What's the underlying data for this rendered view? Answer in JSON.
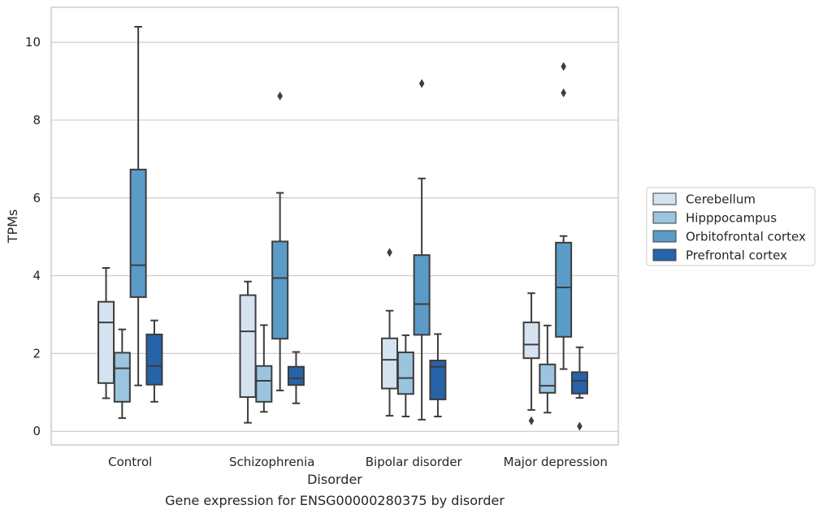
{
  "caption": "Gene expression for ENSG00000280375 by disorder",
  "chart_data": {
    "type": "box",
    "title": "",
    "xlabel": "Disorder",
    "ylabel": "TPMs",
    "categories": [
      "Control",
      "Schizophrenia",
      "Bipolar disorder",
      "Major depression"
    ],
    "ylim": [
      -0.35,
      10.9
    ],
    "yticks": [
      0,
      2,
      4,
      6,
      8,
      10
    ],
    "grid": true,
    "legend_position": "right",
    "series": [
      {
        "name": "Cerebellum",
        "color": "#d5e3f1",
        "boxes": [
          {
            "whislo": 0.85,
            "q1": 1.24,
            "med": 2.8,
            "q3": 3.33,
            "whishi": 4.2,
            "fliers": []
          },
          {
            "whislo": 0.22,
            "q1": 0.88,
            "med": 2.57,
            "q3": 3.5,
            "whishi": 3.85,
            "fliers": []
          },
          {
            "whislo": 0.4,
            "q1": 1.1,
            "med": 1.84,
            "q3": 2.39,
            "whishi": 3.1,
            "fliers": [
              4.6
            ]
          },
          {
            "whislo": 0.55,
            "q1": 1.88,
            "med": 2.23,
            "q3": 2.8,
            "whishi": 3.55,
            "fliers": [
              0.27
            ]
          }
        ]
      },
      {
        "name": "Hipppocampus",
        "color": "#9bc4de",
        "boxes": [
          {
            "whislo": 0.34,
            "q1": 0.76,
            "med": 1.62,
            "q3": 2.02,
            "whishi": 2.62,
            "fliers": []
          },
          {
            "whislo": 0.5,
            "q1": 0.76,
            "med": 1.3,
            "q3": 1.68,
            "whishi": 2.73,
            "fliers": []
          },
          {
            "whislo": 0.38,
            "q1": 0.96,
            "med": 1.37,
            "q3": 2.03,
            "whishi": 2.47,
            "fliers": []
          },
          {
            "whislo": 0.48,
            "q1": 0.99,
            "med": 1.17,
            "q3": 1.72,
            "whishi": 2.72,
            "fliers": []
          }
        ]
      },
      {
        "name": "Orbitofrontal cortex",
        "color": "#5b9bc8",
        "boxes": [
          {
            "whislo": 1.18,
            "q1": 3.45,
            "med": 4.27,
            "q3": 6.73,
            "whishi": 10.4,
            "fliers": []
          },
          {
            "whislo": 1.05,
            "q1": 2.38,
            "med": 3.94,
            "q3": 4.88,
            "whishi": 6.13,
            "fliers": [
              8.62
            ]
          },
          {
            "whislo": 0.3,
            "q1": 2.48,
            "med": 3.27,
            "q3": 4.53,
            "whishi": 6.5,
            "fliers": [
              8.94
            ]
          },
          {
            "whislo": 1.6,
            "q1": 2.43,
            "med": 3.7,
            "q3": 4.85,
            "whishi": 5.02,
            "fliers": [
              8.7,
              9.38
            ]
          }
        ]
      },
      {
        "name": "Prefrontal cortex",
        "color": "#2763a8",
        "boxes": [
          {
            "whislo": 0.76,
            "q1": 1.2,
            "med": 1.68,
            "q3": 2.49,
            "whishi": 2.85,
            "fliers": []
          },
          {
            "whislo": 0.72,
            "q1": 1.19,
            "med": 1.36,
            "q3": 1.66,
            "whishi": 2.04,
            "fliers": []
          },
          {
            "whislo": 0.38,
            "q1": 0.82,
            "med": 1.66,
            "q3": 1.82,
            "whishi": 2.5,
            "fliers": []
          },
          {
            "whislo": 0.86,
            "q1": 0.97,
            "med": 1.3,
            "q3": 1.52,
            "whishi": 2.16,
            "fliers": [
              0.13
            ]
          }
        ]
      }
    ]
  }
}
